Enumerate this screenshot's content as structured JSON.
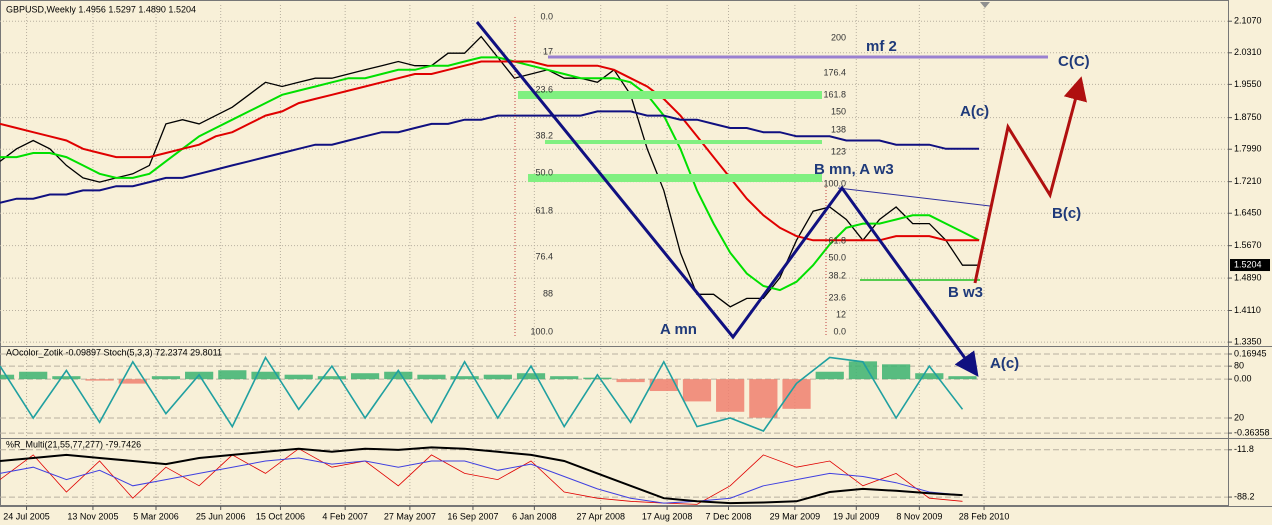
{
  "chart_data": [
    {
      "type": "line",
      "title": "GBPUSD,Weekly  1.4956 1.5297 1.4890 1.5204",
      "x": [
        0,
        1,
        2,
        3,
        4,
        5,
        6,
        7,
        8,
        9,
        10,
        11,
        12,
        13,
        14,
        15,
        16,
        17,
        18,
        19,
        20,
        21,
        22,
        23,
        24,
        25,
        26,
        27,
        28,
        29,
        30,
        31,
        32,
        33,
        34,
        35,
        36,
        37,
        38,
        39,
        40,
        41,
        42,
        43,
        44,
        45,
        46,
        47,
        48,
        49,
        50,
        51,
        52,
        53,
        54,
        55,
        56,
        57,
        58,
        59
      ],
      "series": [
        {
          "type": "line",
          "color": "#000000",
          "width": 1.3,
          "values": [
            1.77,
            1.8,
            1.82,
            1.8,
            1.76,
            1.73,
            1.72,
            1.73,
            1.74,
            1.76,
            1.86,
            1.87,
            1.86,
            1.88,
            1.9,
            1.93,
            1.96,
            1.95,
            1.96,
            1.97,
            1.97,
            1.98,
            1.99,
            2.0,
            2.01,
            2.0,
            2.0,
            2.03,
            2.03,
            2.07,
            2.02,
            1.97,
            1.98,
            1.99,
            1.97,
            1.97,
            1.96,
            1.99,
            1.93,
            1.8,
            1.7,
            1.55,
            1.45,
            1.45,
            1.42,
            1.44,
            1.44,
            1.49,
            1.58,
            1.65,
            1.66,
            1.63,
            1.58,
            1.63,
            1.66,
            1.62,
            1.62,
            1.58,
            1.52,
            1.52
          ]
        },
        {
          "type": "line",
          "color": "#00e000",
          "width": 2,
          "values": [
            1.78,
            1.78,
            1.79,
            1.79,
            1.78,
            1.76,
            1.74,
            1.73,
            1.73,
            1.74,
            1.77,
            1.8,
            1.83,
            1.85,
            1.87,
            1.89,
            1.91,
            1.93,
            1.94,
            1.95,
            1.96,
            1.97,
            1.97,
            1.98,
            1.99,
            1.99,
            2.0,
            2.0,
            2.01,
            2.02,
            2.02,
            2.01,
            2.0,
            1.99,
            1.98,
            1.97,
            1.97,
            1.97,
            1.96,
            1.93,
            1.88,
            1.8,
            1.7,
            1.62,
            1.55,
            1.5,
            1.47,
            1.46,
            1.48,
            1.52,
            1.57,
            1.61,
            1.62,
            1.62,
            1.63,
            1.64,
            1.64,
            1.62,
            1.6,
            1.58
          ]
        },
        {
          "type": "line",
          "color": "#e00000",
          "width": 2,
          "values": [
            1.86,
            1.85,
            1.84,
            1.83,
            1.82,
            1.8,
            1.79,
            1.78,
            1.78,
            1.78,
            1.79,
            1.8,
            1.81,
            1.83,
            1.84,
            1.86,
            1.88,
            1.89,
            1.91,
            1.92,
            1.93,
            1.94,
            1.95,
            1.96,
            1.97,
            1.98,
            1.98,
            1.99,
            2.0,
            2.01,
            2.01,
            2.01,
            2.01,
            2.0,
            2.0,
            2.0,
            2.0,
            1.99,
            1.97,
            1.95,
            1.92,
            1.88,
            1.83,
            1.78,
            1.73,
            1.68,
            1.64,
            1.61,
            1.59,
            1.58,
            1.58,
            1.58,
            1.58,
            1.58,
            1.59,
            1.59,
            1.59,
            1.58,
            1.58,
            1.58
          ]
        },
        {
          "type": "line",
          "color": "#101080",
          "width": 2,
          "values": [
            1.67,
            1.68,
            1.68,
            1.69,
            1.69,
            1.7,
            1.7,
            1.71,
            1.71,
            1.72,
            1.73,
            1.73,
            1.74,
            1.75,
            1.76,
            1.77,
            1.78,
            1.79,
            1.8,
            1.81,
            1.81,
            1.82,
            1.83,
            1.84,
            1.84,
            1.85,
            1.86,
            1.86,
            1.87,
            1.87,
            1.88,
            1.88,
            1.88,
            1.88,
            1.88,
            1.88,
            1.89,
            1.89,
            1.89,
            1.88,
            1.88,
            1.87,
            1.87,
            1.86,
            1.85,
            1.85,
            1.84,
            1.84,
            1.83,
            1.83,
            1.83,
            1.82,
            1.82,
            1.82,
            1.81,
            1.81,
            1.81,
            1.8,
            1.8,
            1.8
          ]
        }
      ],
      "xlim": [
        0,
        74
      ],
      "xticks": [
        {
          "value": 1.6,
          "label": "24 Jul 2005"
        },
        {
          "value": 5.6,
          "label": "13 Nov 2005"
        },
        {
          "value": 9.4,
          "label": "5 Mar 2006"
        },
        {
          "value": 13.3,
          "label": "25 Jun 2006"
        },
        {
          "value": 16.9,
          "label": "15 Oct 2006"
        },
        {
          "value": 20.8,
          "label": "4 Feb 2007"
        },
        {
          "value": 24.7,
          "label": "27 May 2007"
        },
        {
          "value": 28.5,
          "label": "16 Sep 2007"
        },
        {
          "value": 32.2,
          "label": "6 Jan 2008"
        },
        {
          "value": 36.2,
          "label": "27 Apr 2008"
        },
        {
          "value": 40.2,
          "label": "17 Aug 2008"
        },
        {
          "value": 43.9,
          "label": "7 Dec 2008"
        },
        {
          "value": 47.9,
          "label": "29 Mar 2009"
        },
        {
          "value": 51.6,
          "label": "19 Jul 2009"
        },
        {
          "value": 55.4,
          "label": "8 Nov 2009"
        },
        {
          "value": 59.3,
          "label": "28 Feb 2010"
        }
      ],
      "ylim": [
        1.328,
        2.146
      ],
      "yticks": [
        {
          "value": 2.107,
          "label": "2.1070"
        },
        {
          "value": 2.031,
          "label": "2.0310"
        },
        {
          "value": 1.955,
          "label": "1.9550"
        },
        {
          "value": 1.875,
          "label": "1.8750"
        },
        {
          "value": 1.799,
          "label": "1.7990"
        },
        {
          "value": 1.721,
          "label": "1.7210"
        },
        {
          "value": 1.645,
          "label": "1.6450"
        },
        {
          "value": 1.567,
          "label": "1.5670"
        },
        {
          "value": 1.489,
          "label": "1.4890"
        },
        {
          "value": 1.411,
          "label": "1.4110"
        },
        {
          "value": 1.335,
          "label": "1.3350"
        }
      ],
      "last_price": {
        "value": 1.5204,
        "label": "1.5204"
      },
      "grid": true,
      "fib_levels_1": [
        "0.0",
        "17",
        "23.6",
        "38.2",
        "50.0",
        "61.8",
        "76.4",
        "88",
        "100.0"
      ],
      "fib_levels_2": [
        "200",
        "176.4",
        "161.8",
        "150",
        "138",
        "123",
        "100.0",
        "61.8",
        "50.0",
        "38.2",
        "23.6",
        "12",
        "0.0"
      ],
      "annotations": [
        "mf 2",
        "C(C)",
        "A(c)",
        "B(c)",
        "B mn, A w3",
        "A mn",
        "B w3",
        "A(c)"
      ]
    },
    {
      "type": "bar",
      "title": "AOcolor_Zotik -0.09897  Stoch(5,3,3) 72.2374 29.8011",
      "x": [
        0,
        2,
        4,
        6,
        8,
        10,
        12,
        14,
        16,
        18,
        20,
        22,
        24,
        26,
        28,
        30,
        32,
        34,
        36,
        38,
        40,
        42,
        44,
        46,
        48,
        50,
        52,
        54,
        56,
        58
      ],
      "series": [
        {
          "type": "bar",
          "color": "#3cb371",
          "negative_color": "#f08070",
          "values": [
            0.03,
            0.05,
            0.02,
            -0.01,
            -0.03,
            0.02,
            0.05,
            0.06,
            0.05,
            0.03,
            0.02,
            0.04,
            0.05,
            0.03,
            0.02,
            0.03,
            0.04,
            0.02,
            0.01,
            -0.02,
            -0.08,
            -0.15,
            -0.22,
            -0.26,
            -0.2,
            0.05,
            0.12,
            0.1,
            0.04,
            0.02
          ]
        },
        {
          "type": "line",
          "axis": "y2",
          "color": "#20a0a0",
          "width": 1.6,
          "values": [
            80,
            20,
            75,
            15,
            85,
            25,
            70,
            10,
            90,
            30,
            80,
            20,
            75,
            15,
            85,
            20,
            80,
            10,
            70,
            15,
            85,
            10,
            20,
            5,
            60,
            90,
            85,
            20,
            80,
            30
          ]
        }
      ],
      "xlim": [
        0,
        74
      ],
      "ylim": [
        -0.39,
        0.21
      ],
      "yticks": [
        0.16945,
        {
          "value": 0,
          "label": "0.00"
        },
        -0.36358
      ],
      "y2lim": [
        -2,
        101
      ],
      "y2ticks": [
        80,
        20
      ]
    },
    {
      "type": "line",
      "title": "%R_Multi(21,55,77,277) -79.7426",
      "x": [
        0,
        2,
        4,
        6,
        8,
        10,
        12,
        14,
        16,
        18,
        20,
        22,
        24,
        26,
        28,
        30,
        32,
        34,
        36,
        38,
        40,
        42,
        44,
        46,
        48,
        50,
        52,
        54,
        56,
        58
      ],
      "series": [
        {
          "type": "line",
          "color": "#e00000",
          "width": 0.8,
          "values": [
            -60,
            -20,
            -80,
            -30,
            -90,
            -40,
            -70,
            -20,
            -50,
            -10,
            -40,
            -30,
            -70,
            -20,
            -50,
            -60,
            -30,
            -80,
            -90,
            -95,
            -98,
            -100,
            -70,
            -20,
            -40,
            -30,
            -70,
            -50,
            -90,
            -95
          ]
        },
        {
          "type": "line",
          "color": "#4040e0",
          "width": 1,
          "values": [
            -50,
            -40,
            -60,
            -45,
            -70,
            -60,
            -50,
            -40,
            -30,
            -25,
            -35,
            -30,
            -40,
            -30,
            -30,
            -45,
            -35,
            -55,
            -75,
            -90,
            -98,
            -95,
            -90,
            -70,
            -60,
            -50,
            -55,
            -65,
            -80,
            -85
          ]
        },
        {
          "type": "line",
          "color": "#000000",
          "width": 2,
          "values": [
            -30,
            -25,
            -20,
            -25,
            -30,
            -35,
            -25,
            -20,
            -15,
            -10,
            -15,
            -10,
            -12,
            -8,
            -10,
            -15,
            -20,
            -30,
            -50,
            -70,
            -90,
            -95,
            -98,
            -97,
            -95,
            -80,
            -75,
            -78,
            -82,
            -85
          ]
        }
      ],
      "xlim": [
        0,
        74
      ],
      "ylim": [
        -101,
        4
      ],
      "yticks": [
        -11.8,
        -88.2
      ]
    }
  ]
}
